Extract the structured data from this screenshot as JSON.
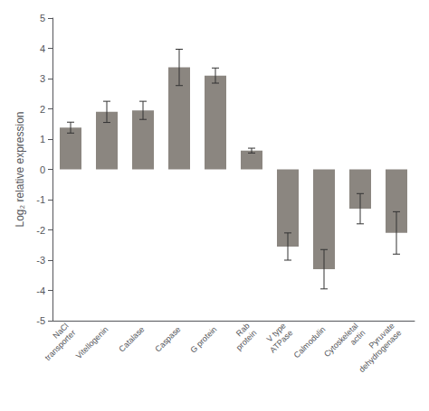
{
  "chart_data": {
    "type": "bar",
    "categories": [
      "NaCl\ntransporter",
      "Vitellogenin",
      "Catalase",
      "Caspase",
      "G protein",
      "Rab\nprotein",
      "V type\nATPase",
      "Calmodulin",
      "Cytoskeletal\nactin",
      "Pyruvate\ndehydrogenase"
    ],
    "values": [
      1.38,
      1.9,
      1.95,
      3.37,
      3.1,
      0.62,
      -2.55,
      -3.3,
      -1.3,
      -2.1
    ],
    "errors": [
      0.18,
      0.35,
      0.3,
      0.6,
      0.25,
      0.08,
      0.45,
      0.65,
      0.5,
      0.7
    ],
    "color": "#8b8680",
    "ylabel": "Log₂ relative expression",
    "ylim": [
      -5,
      5
    ],
    "yticks": [
      -5,
      -4,
      -3,
      -2,
      -1,
      0,
      1,
      2,
      3,
      4,
      5
    ],
    "grid": false
  }
}
